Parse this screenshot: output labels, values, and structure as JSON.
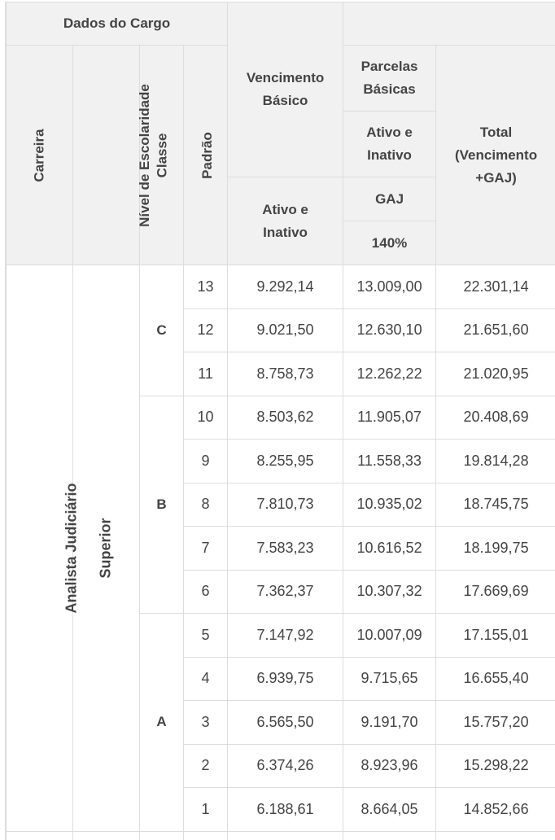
{
  "header": {
    "dados_do_cargo": "Dados do Cargo",
    "carreira": "Carreira",
    "nivel_escolaridade": "Nível de Escolaridade",
    "classe": "Classe",
    "padrao": "Padrão",
    "vencimento_basico": "Vencimento Básico",
    "parcelas_basicas": "Parcelas Básicas",
    "ativo_inativo_parcelas": "Ativo e Inativo",
    "gaj": "GAJ",
    "gaj_percent": "140%",
    "ativo_inativo_vencimento": "Ativo e Inativo",
    "total": "Total (Vencimento +GAJ)"
  },
  "body": {
    "carreira": "Analista Judiciário",
    "nivel": "Superior",
    "classes": [
      "C",
      "B",
      "A"
    ],
    "rows": [
      {
        "padrao": "13",
        "vencimento": "9.292,14",
        "gaj": "13.009,00",
        "total": "22.301,14"
      },
      {
        "padrao": "12",
        "vencimento": "9.021,50",
        "gaj": "12.630,10",
        "total": "21.651,60"
      },
      {
        "padrao": "11",
        "vencimento": "8.758,73",
        "gaj": "12.262,22",
        "total": "21.020,95"
      },
      {
        "padrao": "10",
        "vencimento": "8.503,62",
        "gaj": "11.905,07",
        "total": "20.408,69"
      },
      {
        "padrao": "9",
        "vencimento": "8.255,95",
        "gaj": "11.558,33",
        "total": "19.814,28"
      },
      {
        "padrao": "8",
        "vencimento": "7.810,73",
        "gaj": "10.935,02",
        "total": "18.745,75"
      },
      {
        "padrao": "7",
        "vencimento": "7.583,23",
        "gaj": "10.616,52",
        "total": "18.199,75"
      },
      {
        "padrao": "6",
        "vencimento": "7.362,37",
        "gaj": "10.307,32",
        "total": "17.669,69"
      },
      {
        "padrao": "5",
        "vencimento": "7.147,92",
        "gaj": "10.007,09",
        "total": "17.155,01"
      },
      {
        "padrao": "4",
        "vencimento": "6.939,75",
        "gaj": "9.715,65",
        "total": "16.655,40"
      },
      {
        "padrao": "3",
        "vencimento": "6.565,50",
        "gaj": "9.191,70",
        "total": "15.757,20"
      },
      {
        "padrao": "2",
        "vencimento": "6.374,26",
        "gaj": "8.923,96",
        "total": "15.298,22"
      },
      {
        "padrao": "1",
        "vencimento": "6.188,61",
        "gaj": "8.664,05",
        "total": "14.852,66"
      }
    ]
  }
}
